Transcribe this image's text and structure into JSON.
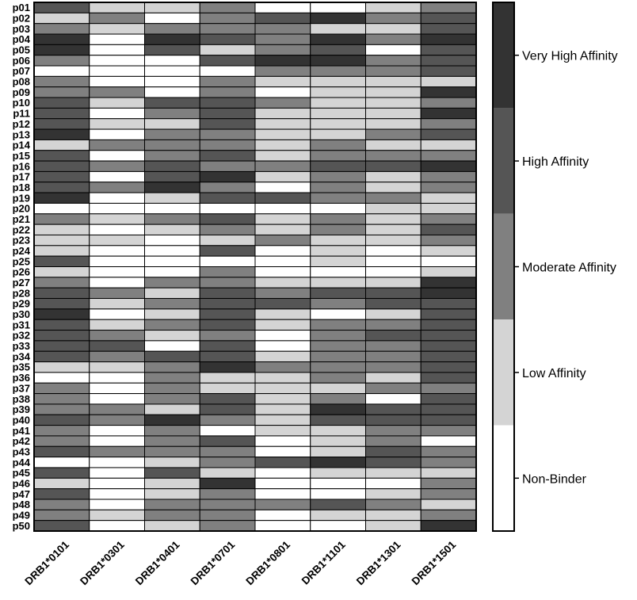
{
  "chart_data": {
    "type": "heatmap",
    "title": "",
    "xlabel": "",
    "ylabel": "",
    "columns": [
      "DRB1*0101",
      "DRB1*0301",
      "DRB1*0401",
      "DRB1*0701",
      "DRB1*0801",
      "DRB1*1101",
      "DRB1*1301",
      "DRB1*1501"
    ],
    "rows": [
      "p01",
      "p02",
      "p03",
      "p04",
      "p05",
      "p06",
      "p07",
      "p08",
      "p09",
      "p10",
      "p11",
      "p12",
      "p13",
      "p14",
      "p15",
      "p16",
      "p17",
      "p18",
      "p19",
      "p20",
      "p21",
      "p22",
      "p23",
      "p24",
      "p25",
      "p26",
      "p27",
      "p28",
      "p29",
      "p30",
      "p31",
      "p32",
      "p33",
      "p34",
      "p35",
      "p36",
      "p37",
      "p38",
      "p39",
      "p40",
      "p41",
      "p42",
      "p43",
      "p44",
      "p45",
      "p46",
      "p47",
      "p48",
      "p49",
      "p50"
    ],
    "levels": [
      "Non-Binder",
      "Low Affinity",
      "Moderate Affinity",
      "High Affinity",
      "Very High Affinity"
    ],
    "level_colors": [
      "#ffffff",
      "#d4d4d4",
      "#808080",
      "#555555",
      "#333333"
    ],
    "legend_position": "right",
    "values": [
      [
        3,
        1,
        1,
        2,
        0,
        0,
        1,
        2
      ],
      [
        1,
        2,
        0,
        2,
        3,
        4,
        2,
        3
      ],
      [
        2,
        1,
        2,
        2,
        2,
        1,
        1,
        3
      ],
      [
        4,
        0,
        4,
        3,
        2,
        4,
        2,
        4
      ],
      [
        4,
        0,
        3,
        1,
        2,
        3,
        0,
        3
      ],
      [
        2,
        0,
        0,
        3,
        4,
        4,
        2,
        3
      ],
      [
        0,
        0,
        0,
        0,
        2,
        2,
        2,
        3
      ],
      [
        2,
        0,
        0,
        2,
        1,
        1,
        1,
        1
      ],
      [
        2,
        2,
        0,
        2,
        0,
        1,
        1,
        4
      ],
      [
        3,
        1,
        3,
        3,
        2,
        1,
        1,
        2
      ],
      [
        3,
        0,
        2,
        3,
        1,
        1,
        1,
        4
      ],
      [
        3,
        1,
        1,
        3,
        1,
        1,
        1,
        2
      ],
      [
        4,
        0,
        2,
        2,
        1,
        1,
        2,
        3
      ],
      [
        1,
        2,
        2,
        2,
        1,
        2,
        1,
        1
      ],
      [
        3,
        0,
        2,
        3,
        1,
        2,
        2,
        2
      ],
      [
        3,
        2,
        3,
        2,
        2,
        3,
        3,
        4
      ],
      [
        3,
        0,
        3,
        4,
        1,
        2,
        1,
        2
      ],
      [
        3,
        2,
        4,
        2,
        0,
        2,
        1,
        2
      ],
      [
        4,
        0,
        1,
        3,
        3,
        2,
        2,
        1
      ],
      [
        0,
        0,
        0,
        0,
        0,
        0,
        1,
        1
      ],
      [
        2,
        1,
        2,
        3,
        1,
        2,
        1,
        2
      ],
      [
        1,
        0,
        1,
        2,
        1,
        2,
        1,
        3
      ],
      [
        1,
        1,
        0,
        1,
        2,
        1,
        1,
        2
      ],
      [
        1,
        0,
        0,
        3,
        0,
        1,
        0,
        1
      ],
      [
        3,
        0,
        0,
        0,
        0,
        1,
        0,
        0
      ],
      [
        1,
        0,
        0,
        2,
        0,
        0,
        0,
        1
      ],
      [
        2,
        0,
        2,
        2,
        1,
        1,
        1,
        4
      ],
      [
        3,
        2,
        1,
        3,
        2,
        3,
        3,
        4
      ],
      [
        3,
        1,
        2,
        3,
        3,
        2,
        3,
        3
      ],
      [
        4,
        0,
        1,
        3,
        1,
        0,
        1,
        3
      ],
      [
        3,
        1,
        2,
        3,
        1,
        2,
        2,
        3
      ],
      [
        3,
        2,
        1,
        2,
        0,
        2,
        3,
        3
      ],
      [
        3,
        3,
        0,
        3,
        0,
        2,
        2,
        3
      ],
      [
        3,
        2,
        3,
        3,
        1,
        2,
        2,
        3
      ],
      [
        1,
        1,
        2,
        4,
        2,
        2,
        2,
        3
      ],
      [
        0,
        0,
        2,
        1,
        1,
        2,
        1,
        3
      ],
      [
        2,
        0,
        2,
        1,
        1,
        1,
        2,
        2
      ],
      [
        2,
        0,
        2,
        3,
        1,
        2,
        0,
        3
      ],
      [
        2,
        2,
        1,
        3,
        1,
        4,
        3,
        3
      ],
      [
        3,
        2,
        4,
        2,
        1,
        3,
        3,
        3
      ],
      [
        2,
        0,
        2,
        0,
        1,
        1,
        2,
        2
      ],
      [
        2,
        0,
        2,
        3,
        0,
        1,
        2,
        0
      ],
      [
        3,
        2,
        2,
        2,
        0,
        1,
        3,
        2
      ],
      [
        0,
        0,
        1,
        2,
        3,
        4,
        3,
        2
      ],
      [
        3,
        0,
        3,
        1,
        0,
        1,
        1,
        1
      ],
      [
        1,
        0,
        1,
        4,
        0,
        0,
        0,
        2
      ],
      [
        3,
        0,
        1,
        2,
        0,
        0,
        1,
        2
      ],
      [
        2,
        0,
        2,
        2,
        2,
        3,
        2,
        1
      ],
      [
        2,
        1,
        2,
        2,
        0,
        1,
        1,
        2
      ],
      [
        3,
        0,
        1,
        2,
        0,
        0,
        1,
        4
      ]
    ]
  }
}
